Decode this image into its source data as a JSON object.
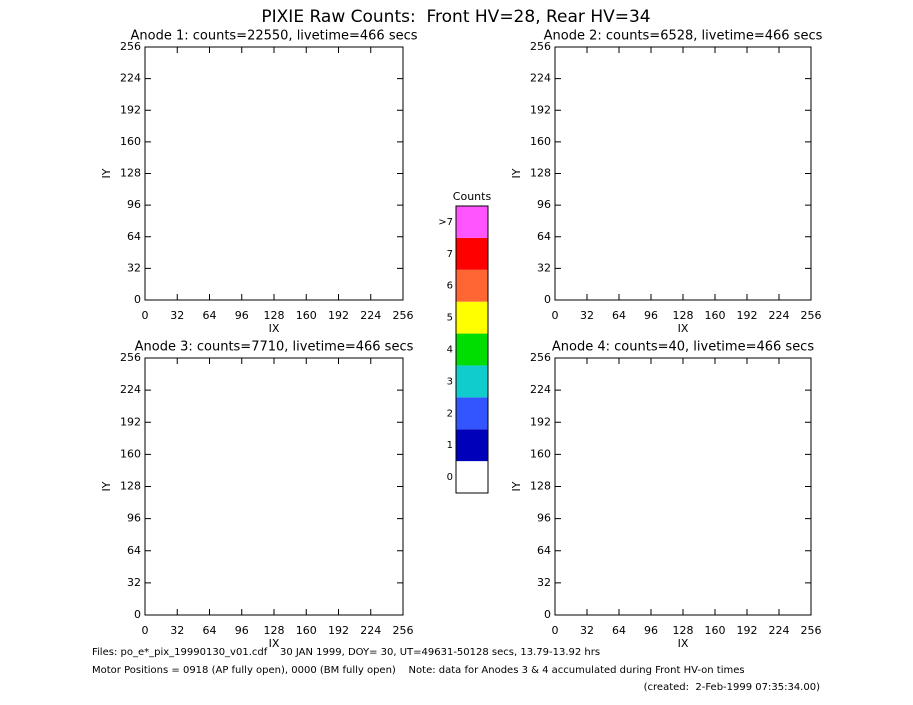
{
  "title": "PIXIE Raw Counts:  Front HV=28, Rear HV=34",
  "chart_data": [
    {
      "type": "heatmap",
      "title": "Anode 1: counts=22550, livetime=466 secs",
      "xlabel": "IX",
      "ylabel": "IY",
      "xlim": [
        0,
        256
      ],
      "ylim": [
        0,
        256
      ],
      "xticks": [
        0,
        32,
        64,
        96,
        128,
        160,
        192,
        224,
        256
      ],
      "yticks": [
        0,
        32,
        64,
        96,
        128,
        160,
        192,
        224,
        256
      ]
    },
    {
      "type": "heatmap",
      "title": "Anode 2: counts=6528, livetime=466 secs",
      "xlabel": "IX",
      "ylabel": "IY",
      "xlim": [
        0,
        256
      ],
      "ylim": [
        0,
        256
      ],
      "xticks": [
        0,
        32,
        64,
        96,
        128,
        160,
        192,
        224,
        256
      ],
      "yticks": [
        0,
        32,
        64,
        96,
        128,
        160,
        192,
        224,
        256
      ]
    },
    {
      "type": "heatmap",
      "title": "Anode 3: counts=7710, livetime=466 secs",
      "xlabel": "IX",
      "ylabel": "IY",
      "xlim": [
        0,
        256
      ],
      "ylim": [
        0,
        256
      ],
      "xticks": [
        0,
        32,
        64,
        96,
        128,
        160,
        192,
        224,
        256
      ],
      "yticks": [
        0,
        32,
        64,
        96,
        128,
        160,
        192,
        224,
        256
      ]
    },
    {
      "type": "heatmap",
      "title": "Anode 4: counts=40, livetime=466 secs",
      "xlabel": "IX",
      "ylabel": "IY",
      "xlim": [
        0,
        256
      ],
      "ylim": [
        0,
        256
      ],
      "xticks": [
        0,
        32,
        64,
        96,
        128,
        160,
        192,
        224,
        256
      ],
      "yticks": [
        0,
        32,
        64,
        96,
        128,
        160,
        192,
        224,
        256
      ]
    }
  ],
  "colorbar": {
    "title": "Counts",
    "labels": [
      "0",
      "1",
      "2",
      "3",
      "4",
      "5",
      "6",
      "7",
      ">7"
    ],
    "colors": [
      "#ffffff",
      "#0000bb",
      "#3355ff",
      "#11cccc",
      "#00dd00",
      "#ffff00",
      "#ff6633",
      "#ff0000",
      "#ff55ff"
    ]
  },
  "footer": {
    "files": "Files: po_e*_pix_19990130_v01.cdf    30 JAN 1999, DOY= 30, UT=49631-50128 secs, 13.79-13.92 hrs",
    "motor": "Motor Positions = 0918 (AP fully open), 0000 (BM fully open)    Note: data for Anodes 3 & 4 accumulated during Front HV-on times",
    "created": "(created:  2-Feb-1999 07:35:34.00)"
  }
}
